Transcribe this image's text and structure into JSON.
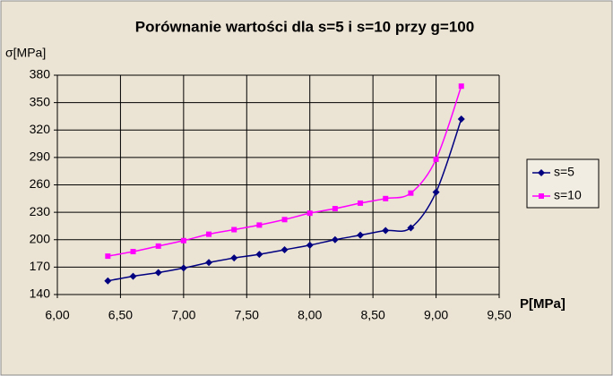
{
  "chart_data": {
    "type": "line",
    "title": "Porównanie wartości dla s=5 i s=10 przy g=100",
    "x_label": "P[MPa]",
    "y_label": "σ[MPa]",
    "x": [
      6.4,
      6.6,
      6.8,
      7.0,
      7.2,
      7.4,
      7.6,
      7.8,
      8.0,
      8.2,
      8.4,
      8.6,
      8.8,
      9.0,
      9.2
    ],
    "series": [
      {
        "name": "s=5",
        "color": "#000080",
        "marker": "diamond",
        "values": [
          155,
          160,
          164,
          169,
          175,
          180,
          184,
          189,
          194,
          200,
          205,
          210,
          213,
          252,
          332
        ]
      },
      {
        "name": "s=10",
        "color": "#ff00ff",
        "marker": "square",
        "values": [
          182,
          187,
          193,
          199,
          206,
          211,
          216,
          222,
          229,
          234,
          240,
          245,
          251,
          288,
          368
        ]
      }
    ],
    "xlim": [
      6,
      9.5
    ],
    "xticks": [
      {
        "value": 6,
        "label": "6,00"
      },
      {
        "value": 6.5,
        "label": "6,50"
      },
      {
        "value": 7,
        "label": "7,00"
      },
      {
        "value": 7.5,
        "label": "7,50"
      },
      {
        "value": 8,
        "label": "8,00"
      },
      {
        "value": 8.5,
        "label": "8,50"
      },
      {
        "value": 9,
        "label": "9,00"
      },
      {
        "value": 9.5,
        "label": "9,50"
      }
    ],
    "ylim": [
      140,
      380
    ],
    "yticks": [
      140,
      170,
      200,
      230,
      260,
      290,
      320,
      350,
      380
    ],
    "grid": true,
    "legend": "right"
  }
}
